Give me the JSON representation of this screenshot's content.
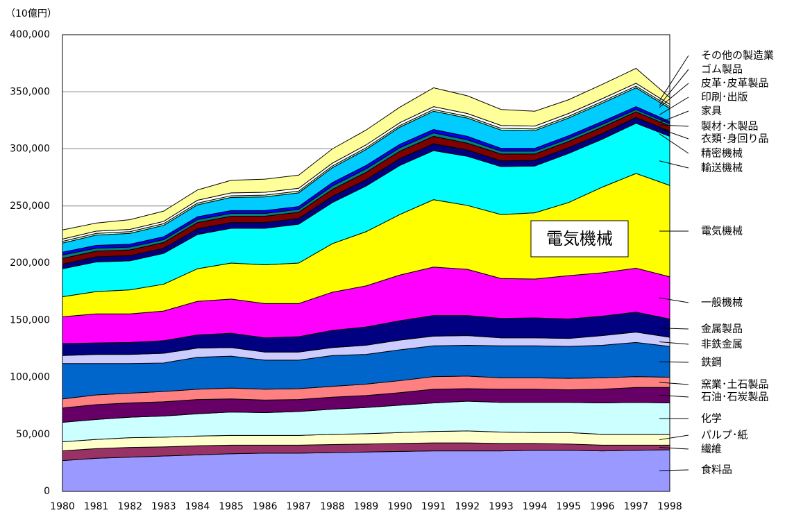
{
  "chart_data": {
    "type": "stacked_area",
    "y_label": "（10億円）",
    "x": [
      1980,
      1981,
      1982,
      1983,
      1984,
      1985,
      1986,
      1987,
      1988,
      1989,
      1990,
      1991,
      1992,
      1993,
      1994,
      1995,
      1996,
      1997,
      1998
    ],
    "ylim": [
      0,
      400000
    ],
    "yticks": [
      0,
      {
        "value": 50000,
        "label": "50,000"
      },
      {
        "value": 100000,
        "label": "100,000"
      },
      {
        "value": 150000,
        "label": "150,000"
      },
      {
        "value": 200000,
        "label": "200,000"
      },
      {
        "value": 250000,
        "label": "250,000"
      },
      {
        "value": 300000,
        "label": "300,000"
      },
      {
        "value": 350000,
        "label": "350,000"
      },
      {
        "value": 400000,
        "label": "400,000"
      }
    ],
    "grid": true,
    "series": [
      {
        "name": "食料品",
        "color": "#9999ff",
        "values": [
          27000,
          29000,
          30000,
          31000,
          32000,
          33000,
          33500,
          33500,
          34000,
          34500,
          35000,
          35500,
          35500,
          35500,
          36000,
          36000,
          35500,
          36000,
          36500
        ]
      },
      {
        "name": "繊維",
        "color": "#993366",
        "values": [
          8500,
          8500,
          8500,
          8000,
          8000,
          7500,
          7000,
          7000,
          7000,
          7000,
          7000,
          7000,
          7000,
          6500,
          6000,
          5500,
          5000,
          4500,
          4000
        ]
      },
      {
        "name": "パルプ･紙",
        "color": "#ffffcc",
        "values": [
          8000,
          8000,
          8500,
          8500,
          8500,
          8500,
          8500,
          8500,
          9000,
          9000,
          9500,
          10000,
          10500,
          10000,
          9500,
          10000,
          9500,
          9500,
          9500
        ]
      },
      {
        "name": "化学",
        "color": "#ccffff",
        "values": [
          17000,
          17500,
          18000,
          18500,
          19500,
          20500,
          20000,
          21000,
          22000,
          23000,
          24000,
          25000,
          26000,
          26000,
          26500,
          26500,
          27500,
          28000,
          27500
        ]
      },
      {
        "name": "石油･石炭製品",
        "color": "#660066",
        "values": [
          12500,
          13000,
          12500,
          12500,
          12500,
          11500,
          11000,
          10500,
          10500,
          10500,
          11000,
          12000,
          11000,
          11500,
          11500,
          11000,
          12000,
          13000,
          13500
        ]
      },
      {
        "name": "窯業･土石製品",
        "color": "#ff8080",
        "values": [
          8000,
          8500,
          8500,
          9000,
          9000,
          9500,
          9500,
          9500,
          9500,
          10000,
          10500,
          11000,
          11000,
          10000,
          10000,
          10000,
          10000,
          9500,
          9000
        ]
      },
      {
        "name": "鉄鋼",
        "color": "#0066cc",
        "values": [
          31000,
          27500,
          26000,
          25000,
          28000,
          28000,
          25500,
          25000,
          27000,
          26000,
          27000,
          27000,
          27000,
          28000,
          28000,
          28000,
          28500,
          30000,
          27000
        ]
      },
      {
        "name": "非鉄金属",
        "color": "#ccccff",
        "values": [
          7000,
          8000,
          8000,
          8500,
          8000,
          7500,
          7000,
          7000,
          7000,
          8000,
          8500,
          8500,
          8500,
          7000,
          7000,
          7000,
          8500,
          9000,
          8000
        ]
      },
      {
        "name": "金属製品",
        "color": "#000080",
        "values": [
          10500,
          10000,
          10500,
          11000,
          11500,
          12500,
          12500,
          13500,
          15000,
          16000,
          17000,
          18000,
          17500,
          17000,
          17500,
          17000,
          17000,
          17500,
          16000
        ]
      },
      {
        "name": "一般機械",
        "color": "#ff00ff",
        "values": [
          23500,
          25500,
          25000,
          26000,
          29500,
          30000,
          30000,
          29000,
          33500,
          36000,
          40000,
          42500,
          40500,
          35000,
          34000,
          38000,
          38000,
          38500,
          37000
        ]
      },
      {
        "name": "電気機械",
        "color": "#ffff00",
        "values": [
          17500,
          19500,
          21000,
          23500,
          28500,
          31500,
          34000,
          35500,
          42500,
          47500,
          53000,
          59000,
          56000,
          56000,
          58000,
          64000,
          75000,
          83000,
          80000
        ]
      },
      {
        "name": "輸送機械",
        "color": "#00ffff",
        "values": [
          24500,
          26000,
          25500,
          27000,
          30000,
          30500,
          32000,
          34000,
          36000,
          40000,
          43000,
          43000,
          43000,
          42000,
          41000,
          43000,
          42000,
          44000,
          43000
        ]
      },
      {
        "name": "精密機械",
        "color": "#000080",
        "values": [
          4000,
          4500,
          4500,
          4500,
          5000,
          5000,
          5000,
          5000,
          5500,
          5500,
          6000,
          6000,
          5500,
          5000,
          5000,
          5000,
          5000,
          5000,
          4500
        ]
      },
      {
        "name": "衣類･身回り品",
        "color": "#800000",
        "values": [
          5000,
          5000,
          5000,
          5000,
          5500,
          5500,
          5500,
          5500,
          6000,
          6500,
          6500,
          6500,
          6000,
          6000,
          5500,
          5500,
          5500,
          5000,
          4500
        ]
      },
      {
        "name": "製材･木製品",
        "color": "#008080",
        "values": [
          3000,
          2500,
          2500,
          2500,
          2500,
          2500,
          2500,
          2500,
          3000,
          3000,
          3000,
          3000,
          3000,
          2500,
          2500,
          2500,
          2500,
          2000,
          2000
        ]
      },
      {
        "name": "家具",
        "color": "#0000ff",
        "values": [
          2500,
          2500,
          2500,
          2500,
          2500,
          2500,
          2500,
          2500,
          3000,
          3000,
          3000,
          3000,
          3000,
          2500,
          2500,
          2500,
          2500,
          2500,
          2000
        ]
      },
      {
        "name": "印刷･出版",
        "color": "#00ccff",
        "values": [
          8000,
          9000,
          9500,
          10000,
          10500,
          11500,
          12000,
          12000,
          13000,
          14000,
          15000,
          16000,
          16000,
          16000,
          15500,
          15500,
          16000,
          16500,
          11500
        ]
      },
      {
        "name": "皮革･皮革製品",
        "color": "#ccffcc",
        "values": [
          1500,
          1500,
          1500,
          1500,
          1500,
          1500,
          1500,
          1500,
          1500,
          1500,
          1500,
          1500,
          1500,
          1500,
          1500,
          1500,
          1500,
          1500,
          1500
        ]
      },
      {
        "name": "ゴム製品",
        "color": "#ffffff",
        "values": [
          2000,
          2000,
          2000,
          2000,
          2500,
          2500,
          2500,
          2500,
          2500,
          2500,
          2500,
          2500,
          2500,
          2500,
          2500,
          2500,
          2500,
          2500,
          2000
        ]
      },
      {
        "name": "その他の製造業",
        "color": "#ffff99",
        "values": [
          8000,
          7000,
          8500,
          9000,
          9000,
          11000,
          11500,
          11500,
          12500,
          13000,
          13500,
          16500,
          15500,
          14000,
          13000,
          12000,
          12500,
          13000,
          6000
        ]
      }
    ]
  }
}
